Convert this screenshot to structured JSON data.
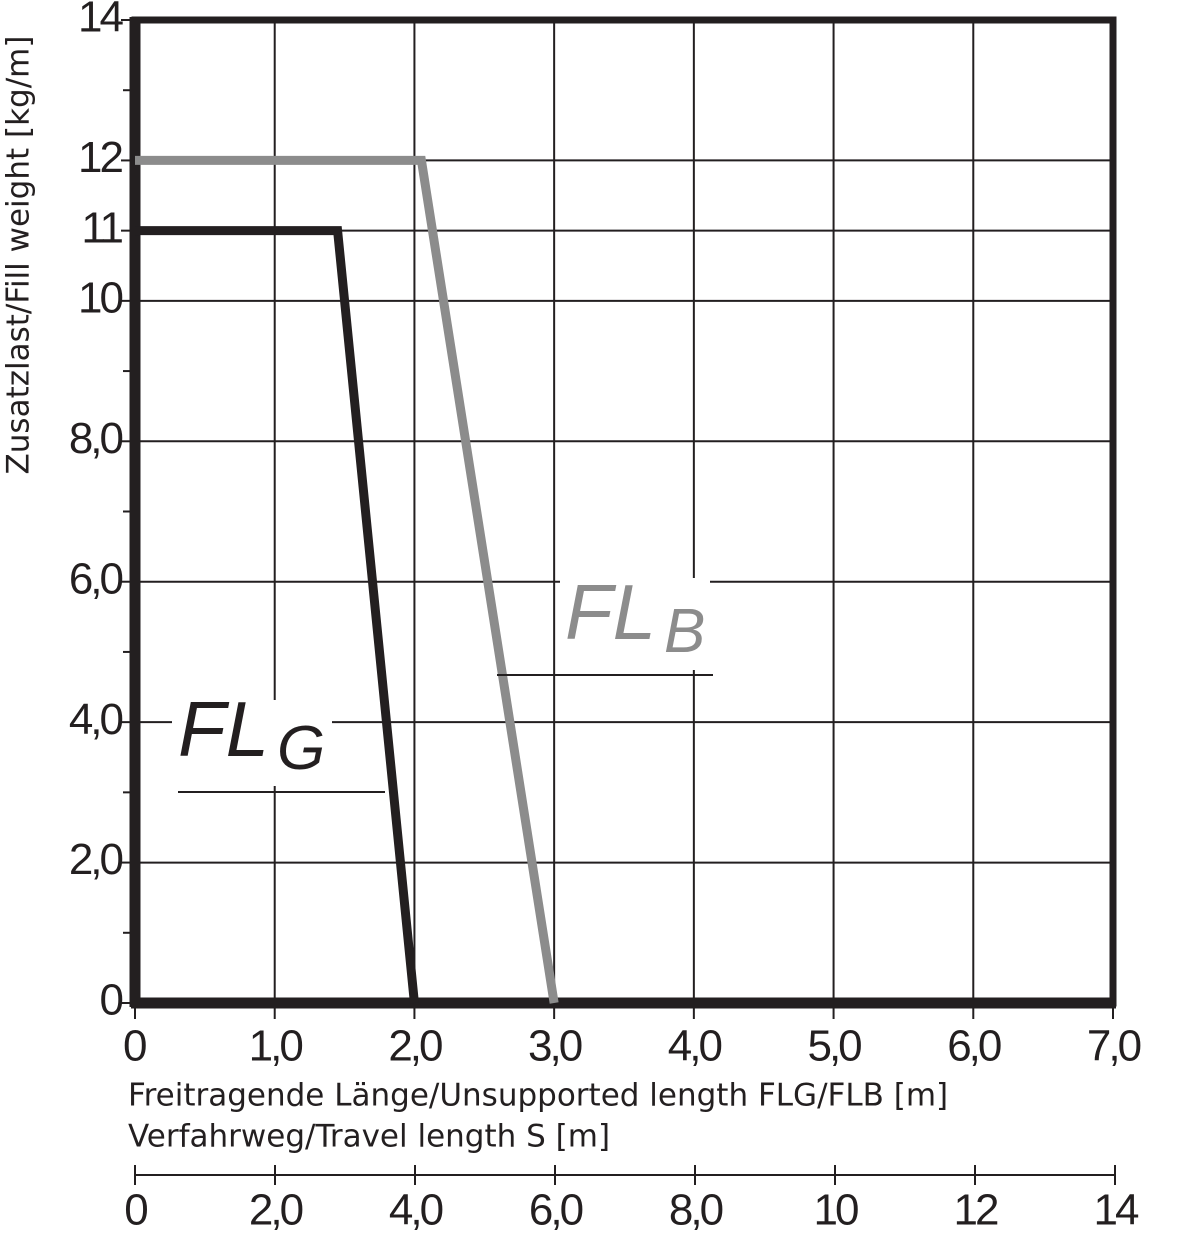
{
  "chart_data": {
    "type": "line",
    "y_label": "Zusatzlast/Fill weight [kg/m]",
    "x_label": "Freitragende Länge/Unsupported length FLG/FLB [m]",
    "x2_label": "Verfahrweg/Travel length S [m]",
    "xlim": [
      0,
      7
    ],
    "xticks": [
      0,
      {
        "value": 1,
        "label": "1,0"
      },
      {
        "value": 2,
        "label": "2,0"
      },
      {
        "value": 3,
        "label": "3,0"
      },
      {
        "value": 4,
        "label": "4,0"
      },
      {
        "value": 5,
        "label": "5,0"
      },
      {
        "value": 6,
        "label": "6,0"
      },
      {
        "value": 7,
        "label": "7,0"
      }
    ],
    "ylim": [
      0,
      14
    ],
    "yticks": [
      0,
      {
        "value": 2,
        "label": "2,0"
      },
      {
        "value": 4,
        "label": "4,0"
      },
      {
        "value": 6,
        "label": "6,0"
      },
      {
        "value": 8,
        "label": "8,0"
      },
      10,
      11,
      12,
      14
    ],
    "yminorticks": [
      1,
      3,
      5,
      7,
      9,
      13
    ],
    "x2lim": [
      0,
      14
    ],
    "x2ticks": [
      0,
      {
        "value": 2,
        "label": "2,0"
      },
      {
        "value": 4,
        "label": "4,0"
      },
      {
        "value": 6,
        "label": "6,0"
      },
      {
        "value": 8,
        "label": "8,0"
      },
      10,
      12,
      14
    ],
    "grid": true,
    "series": [
      {
        "name": "FL",
        "subscript": "G",
        "color": "#231f20",
        "x": [
          0,
          1.45,
          2.0
        ],
        "values": [
          11,
          11,
          0
        ]
      },
      {
        "name": "FL",
        "subscript": "B",
        "color": "#8c8c8c",
        "x": [
          0,
          2.05,
          3.0
        ],
        "values": [
          12,
          12,
          0
        ]
      }
    ]
  }
}
